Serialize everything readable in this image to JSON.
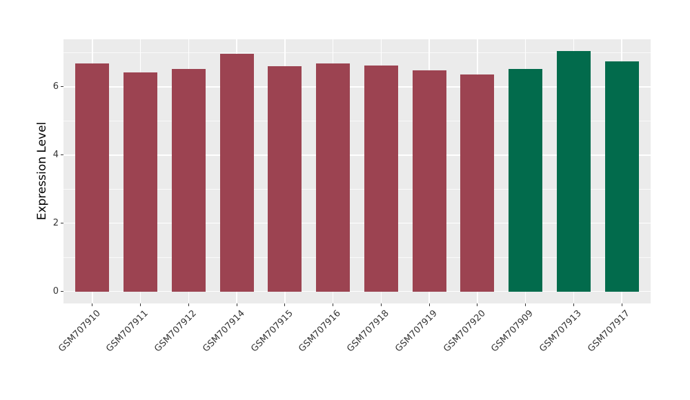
{
  "figure": {
    "background": "#FFFFFF"
  },
  "chart_data": {
    "type": "bar",
    "title": "",
    "xlabel": "",
    "ylabel": "Expression Level",
    "categories": [
      "GSM707910",
      "GSM707911",
      "GSM707912",
      "GSM707914",
      "GSM707915",
      "GSM707916",
      "GSM707918",
      "GSM707919",
      "GSM707920",
      "GSM707909",
      "GSM707913",
      "GSM707917"
    ],
    "values": [
      6.68,
      6.42,
      6.52,
      6.97,
      6.61,
      6.69,
      6.62,
      6.48,
      6.36,
      6.53,
      7.05,
      6.75
    ],
    "groups": [
      "maroon",
      "maroon",
      "maroon",
      "maroon",
      "maroon",
      "maroon",
      "maroon",
      "maroon",
      "maroon",
      "green",
      "green",
      "green"
    ],
    "group_colors": {
      "maroon": "#9C4351",
      "green": "#026B4C"
    },
    "bar_width_fraction": 0.7,
    "ylim": [
      0,
      7.05
    ],
    "y_expand_mult": 0.05,
    "y_ticks_major": [
      0,
      2,
      4,
      6
    ],
    "y_ticks_minor": [
      1,
      3,
      5,
      7
    ],
    "x_label_angle_deg": 45,
    "legend_position": "none",
    "panel_background": "#EBEBEB",
    "grid_major_color": "#FFFFFF",
    "grid_minor_color": "#FFFFFF",
    "tick_mark_color": "#333333",
    "axis_text_color": "#333333",
    "axis_title_color": "#000000"
  }
}
